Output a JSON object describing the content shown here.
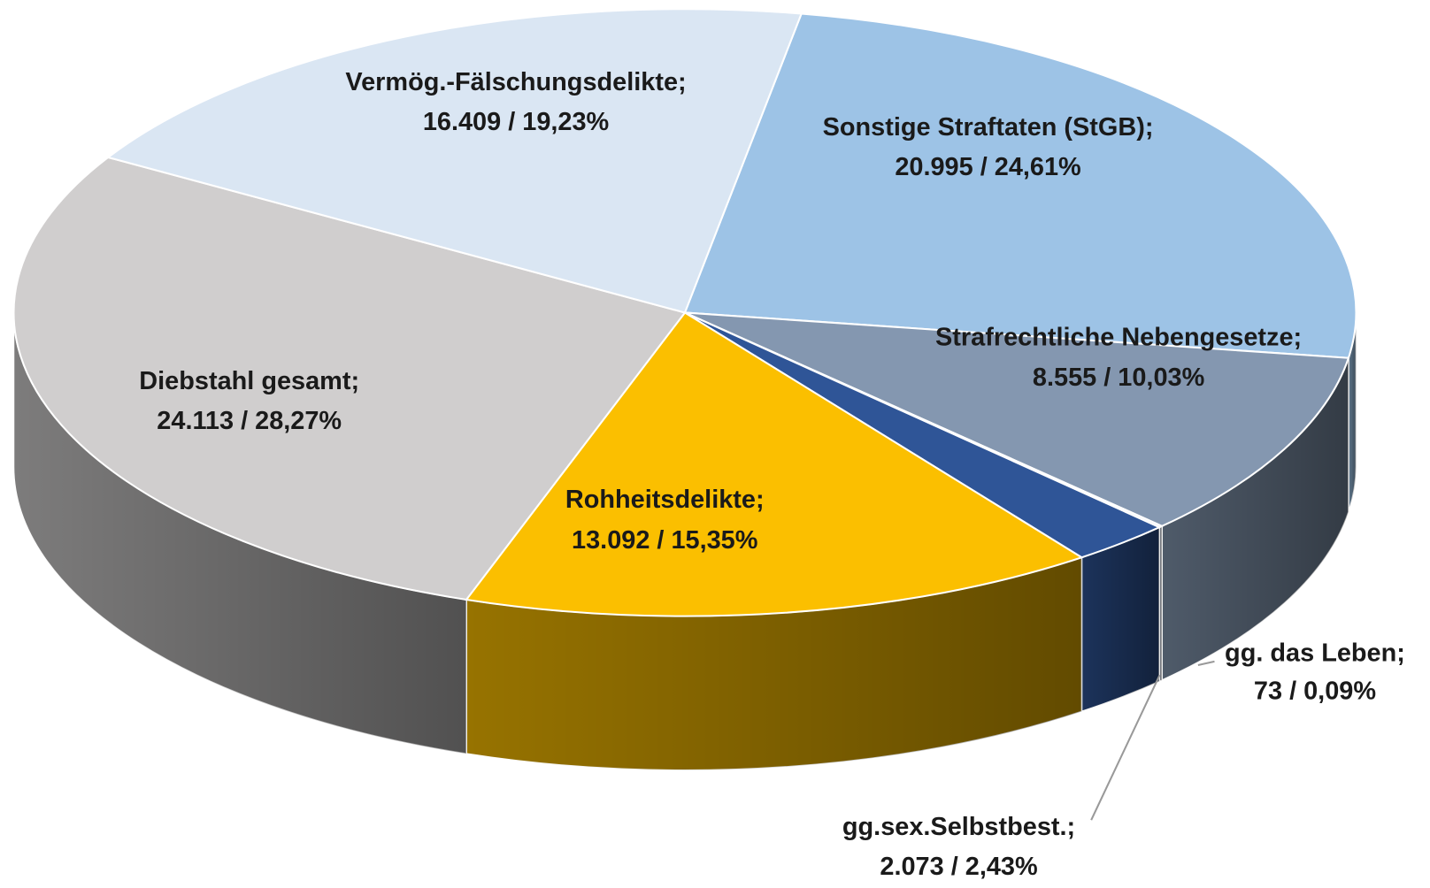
{
  "chart_data": {
    "type": "pie3d",
    "categories": [
      "Sonstige Straftaten (StGB);",
      "Strafrechtliche Nebengesetze;",
      "gg. das Leben;",
      "gg.sex.Selbstbest.;",
      "Rohheitsdelikte;",
      "Diebstahl gesamt;",
      "Vermög.-Fälschungsdelikte;"
    ],
    "values": [
      20995,
      8555,
      73,
      2073,
      13092,
      24113,
      16409
    ],
    "value_labels": [
      "20.995 / 24,61%",
      "8.555 / 10,03%",
      "73 / 0,09%",
      "2.073 / 2,43%",
      "13.092 / 15,35%",
      "24.113 / 28,27%",
      "16.409 / 19,23%"
    ],
    "colors": [
      "#9dc3e6",
      "#8497b0",
      "#dae3f3",
      "#2f5597",
      "#fbbf00",
      "#d0cece",
      "#dae6f3"
    ]
  }
}
